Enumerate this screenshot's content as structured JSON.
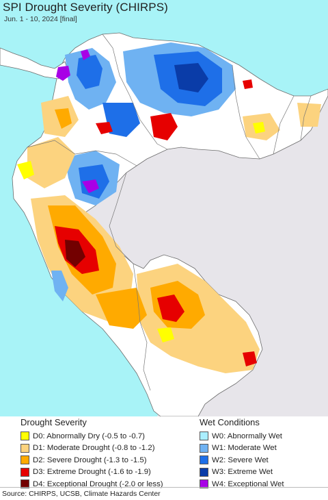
{
  "title": "SPI Drought Severity (CHIRPS)",
  "subtitle": "Jun. 1 - 10, 2024 [final]",
  "map": {
    "ocean_color": "#a8f3f7",
    "land_outside_color": "#e7e5ea",
    "land_normal_color": "#ffffff",
    "border_color": "#6b6b6b"
  },
  "legend": {
    "drought": {
      "heading": "Drought Severity",
      "items": [
        {
          "label": "D0: Abnormally Dry (-0.5 to -0.7)",
          "color": "#ffff00"
        },
        {
          "label": "D1: Moderate Drought (-0.8 to -1.2)",
          "color": "#fcd37f"
        },
        {
          "label": "D2: Severe Drought (-1.3 to -1.5)",
          "color": "#ffaa00"
        },
        {
          "label": "D3: Extreme Drought (-1.6 to -1.9)",
          "color": "#e60000"
        },
        {
          "label": "D4: Exceptional Drought (-2.0 or less)",
          "color": "#730000"
        }
      ]
    },
    "wet": {
      "heading": "Wet Conditions",
      "items": [
        {
          "label": "W0: Abnormally Wet",
          "color": "#aaeeff"
        },
        {
          "label": "W1: Moderate Wet",
          "color": "#6fb2f2"
        },
        {
          "label": "W2: Severe Wet",
          "color": "#1e6fe8"
        },
        {
          "label": "W3: Extreme Wet",
          "color": "#0a3ca8"
        },
        {
          "label": "W4: Exceptional Wet",
          "color": "#a800e6"
        }
      ]
    }
  },
  "source": "Source: CHIRPS, UCSB, Climate Hazards Center"
}
